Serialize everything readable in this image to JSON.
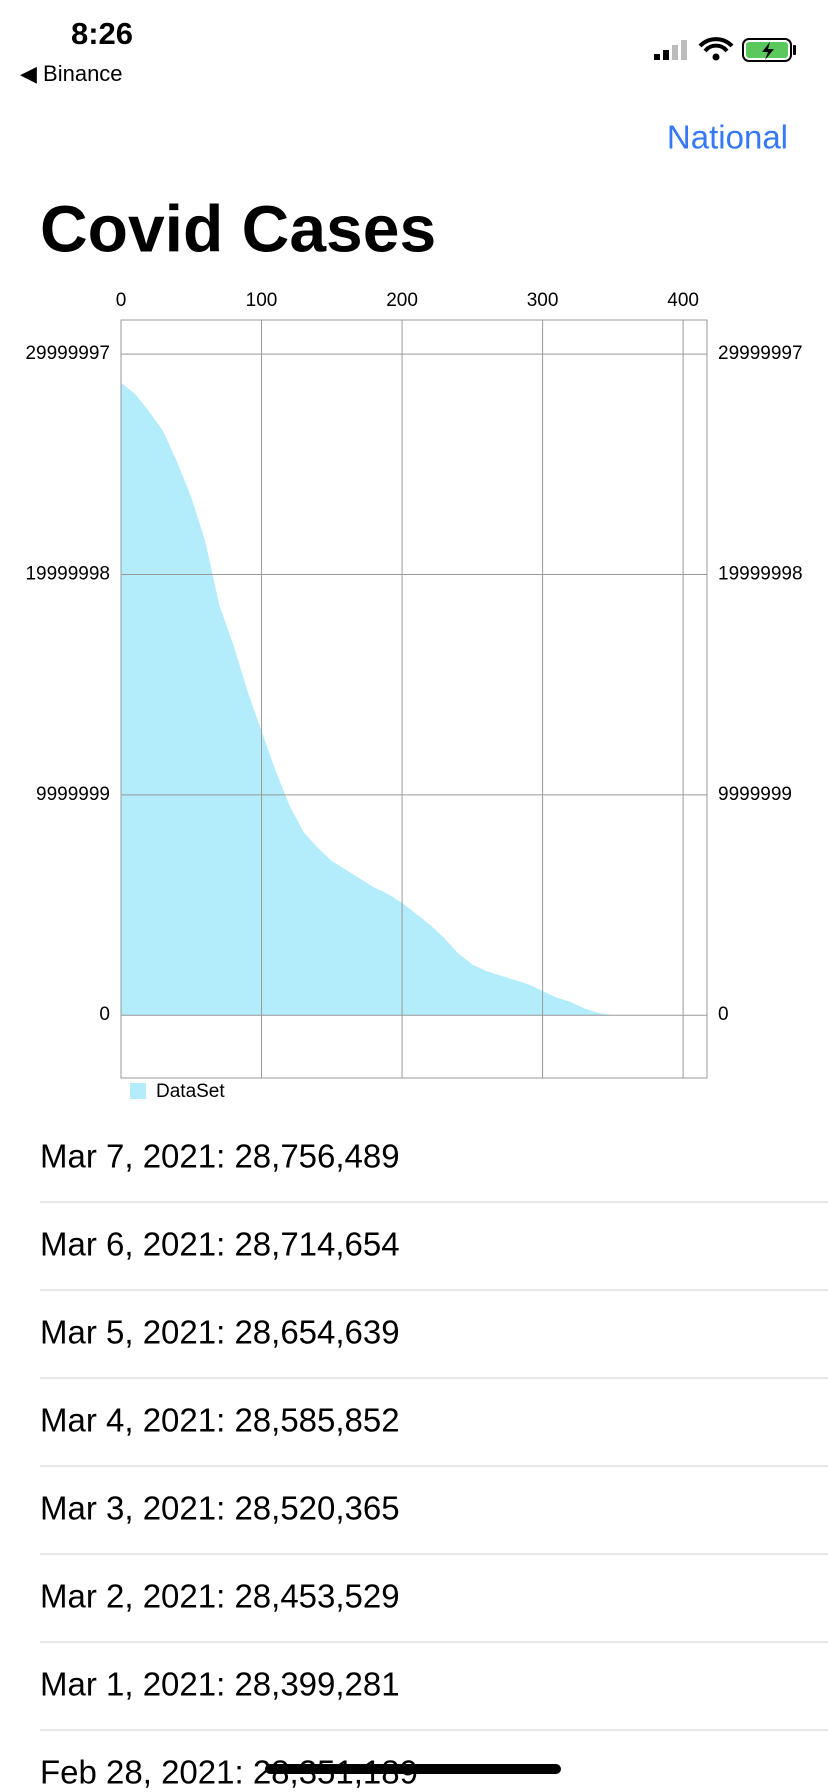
{
  "status_bar": {
    "time": "8:26",
    "back": "◀ Binance"
  },
  "nav": {
    "button": "National"
  },
  "header": {
    "title": "Covid Cases"
  },
  "chart_data": {
    "type": "area",
    "x": [
      0,
      10,
      20,
      30,
      40,
      50,
      60,
      70,
      80,
      90,
      100,
      110,
      120,
      130,
      140,
      150,
      160,
      170,
      180,
      190,
      200,
      210,
      220,
      230,
      240,
      250,
      260,
      270,
      280,
      290,
      300,
      310,
      320,
      330,
      340,
      350
    ],
    "series": [
      {
        "name": "DataSet",
        "color": "#b3ecfa",
        "values": [
          28700000,
          28200000,
          27400000,
          26500000,
          25100000,
          23500000,
          21500000,
          18600000,
          16800000,
          14700000,
          12900000,
          11100000,
          9500000,
          8300000,
          7600000,
          7000000,
          6600000,
          6200000,
          5800000,
          5500000,
          5100000,
          4600000,
          4100000,
          3500000,
          2800000,
          2300000,
          2000000,
          1800000,
          1600000,
          1400000,
          1100000,
          800000,
          600000,
          300000,
          100000,
          0
        ]
      }
    ],
    "xlim": [
      0,
      417
    ],
    "xticks": [
      0,
      100,
      200,
      300,
      400
    ],
    "ylim": [
      -2850000,
      31550000
    ],
    "yticks": [
      0,
      9999999,
      19999998,
      29999997
    ],
    "y2lim": [
      -2850000,
      31550000
    ],
    "y2ticks": [
      0,
      9999999,
      19999998,
      29999997
    ],
    "grid": true
  },
  "list": {
    "rows": [
      "Mar 7, 2021: 28,756,489",
      "Mar 6, 2021: 28,714,654",
      "Mar 5, 2021: 28,654,639",
      "Mar 4, 2021: 28,585,852",
      "Mar 3, 2021: 28,520,365",
      "Mar 2, 2021: 28,453,529",
      "Mar 1, 2021: 28,399,281",
      "Feb 28, 2021: 28,351,189"
    ]
  }
}
